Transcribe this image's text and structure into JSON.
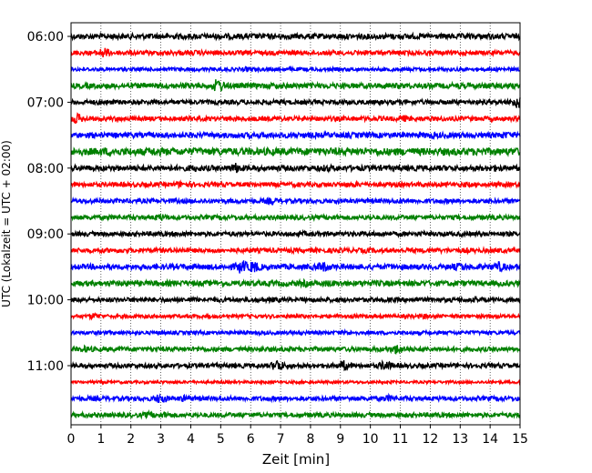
{
  "chart_data": {
    "type": "line",
    "title": "",
    "xlabel": "Zeit  [min]",
    "ylabel": "UTC (Lokalzeit = UTC + 02:00)",
    "xlim": [
      0,
      15
    ],
    "x_ticks": [
      "0",
      "1",
      "2",
      "3",
      "4",
      "5",
      "6",
      "7",
      "8",
      "9",
      "10",
      "11",
      "12",
      "13",
      "14",
      "15"
    ],
    "y_ticks": [
      "06:00",
      "07:00",
      "08:00",
      "09:00",
      "10:00",
      "11:00"
    ],
    "grid": "vertical dotted lines at each minute",
    "trace_interval_minutes": 15,
    "colors_cycle": [
      "#000000",
      "#ff0000",
      "#0000ff",
      "#008000"
    ],
    "traces": [
      {
        "start": "06:00",
        "color": "#000000",
        "amp": 3,
        "bursts": [
          [
            4.1,
            3
          ],
          [
            8.1,
            2
          ],
          [
            14.2,
            3
          ]
        ]
      },
      {
        "start": "06:15",
        "color": "#ff0000",
        "amp": 2.5,
        "bursts": [
          [
            1.1,
            6
          ],
          [
            4.2,
            3
          ],
          [
            9.8,
            3
          ]
        ]
      },
      {
        "start": "06:30",
        "color": "#0000ff",
        "amp": 2,
        "bursts": [
          [
            5.9,
            3
          ],
          [
            8.5,
            2
          ]
        ]
      },
      {
        "start": "06:45",
        "color": "#008000",
        "amp": 3,
        "bursts": [
          [
            4.9,
            8
          ],
          [
            9.3,
            3
          ],
          [
            13.0,
            3
          ]
        ]
      },
      {
        "start": "07:00",
        "color": "#000000",
        "amp": 2.5,
        "bursts": [
          [
            7.0,
            3
          ],
          [
            14.9,
            7
          ]
        ]
      },
      {
        "start": "07:15",
        "color": "#ff0000",
        "amp": 2.5,
        "bursts": [
          [
            0.2,
            6
          ],
          [
            11.1,
            4
          ]
        ]
      },
      {
        "start": "07:30",
        "color": "#0000ff",
        "amp": 3,
        "bursts": [
          [
            4.0,
            3
          ],
          [
            9.2,
            3
          ],
          [
            12.0,
            4
          ],
          [
            14.5,
            4
          ]
        ]
      },
      {
        "start": "07:45",
        "color": "#008000",
        "amp": 4,
        "bursts": [
          [
            1.3,
            5
          ],
          [
            2.8,
            5
          ],
          [
            4.0,
            4
          ],
          [
            8.9,
            4
          ]
        ]
      },
      {
        "start": "08:00",
        "color": "#000000",
        "amp": 3,
        "bursts": [
          [
            4.1,
            4
          ],
          [
            5.5,
            6
          ],
          [
            8.5,
            4
          ],
          [
            14.2,
            4
          ]
        ]
      },
      {
        "start": "08:15",
        "color": "#ff0000",
        "amp": 2.5,
        "bursts": [
          [
            3.7,
            4
          ],
          [
            9.5,
            3
          ],
          [
            13.2,
            3
          ]
        ]
      },
      {
        "start": "08:30",
        "color": "#0000ff",
        "amp": 2.5,
        "bursts": [
          [
            6.7,
            4
          ],
          [
            11.0,
            3
          ]
        ]
      },
      {
        "start": "08:45",
        "color": "#008000",
        "amp": 2.5,
        "bursts": [
          [
            3.0,
            4
          ],
          [
            8.8,
            3
          ]
        ]
      },
      {
        "start": "09:00",
        "color": "#000000",
        "amp": 2.5,
        "bursts": [
          [
            3.7,
            3
          ],
          [
            7.7,
            3
          ],
          [
            11.8,
            3
          ]
        ]
      },
      {
        "start": "09:15",
        "color": "#ff0000",
        "amp": 2.5,
        "bursts": [
          [
            3.5,
            3
          ],
          [
            9.9,
            3
          ],
          [
            13.2,
            3
          ]
        ]
      },
      {
        "start": "09:30",
        "color": "#0000ff",
        "amp": 3,
        "bursts": [
          [
            5.7,
            8
          ],
          [
            6.1,
            7
          ],
          [
            8.4,
            6
          ],
          [
            13.0,
            5
          ],
          [
            14.3,
            6
          ]
        ]
      },
      {
        "start": "09:45",
        "color": "#008000",
        "amp": 3,
        "bursts": [
          [
            7.8,
            4
          ],
          [
            8.6,
            4
          ],
          [
            11.0,
            3
          ]
        ]
      },
      {
        "start": "10:00",
        "color": "#000000",
        "amp": 2.5,
        "bursts": [
          [
            6.8,
            3
          ],
          [
            13.6,
            3
          ]
        ]
      },
      {
        "start": "10:15",
        "color": "#ff0000",
        "amp": 2,
        "bursts": [
          [
            0.8,
            4
          ],
          [
            11.8,
            3
          ]
        ]
      },
      {
        "start": "10:30",
        "color": "#0000ff",
        "amp": 2,
        "bursts": [
          [
            9.2,
            3
          ]
        ]
      },
      {
        "start": "10:45",
        "color": "#008000",
        "amp": 2.5,
        "bursts": [
          [
            0.5,
            4
          ],
          [
            10.9,
            6
          ]
        ]
      },
      {
        "start": "11:00",
        "color": "#000000",
        "amp": 2.5,
        "bursts": [
          [
            6.9,
            7
          ],
          [
            9.1,
            6
          ],
          [
            10.5,
            6
          ]
        ]
      },
      {
        "start": "11:15",
        "color": "#ff0000",
        "amp": 1.5,
        "bursts": []
      },
      {
        "start": "11:30",
        "color": "#0000ff",
        "amp": 2.5,
        "bursts": [
          [
            3.0,
            6
          ],
          [
            3.8,
            4
          ],
          [
            10.6,
            4
          ]
        ]
      },
      {
        "start": "11:45",
        "color": "#008000",
        "amp": 2.5,
        "bursts": [
          [
            2.6,
            4
          ],
          [
            3.1,
            4
          ]
        ]
      }
    ]
  }
}
